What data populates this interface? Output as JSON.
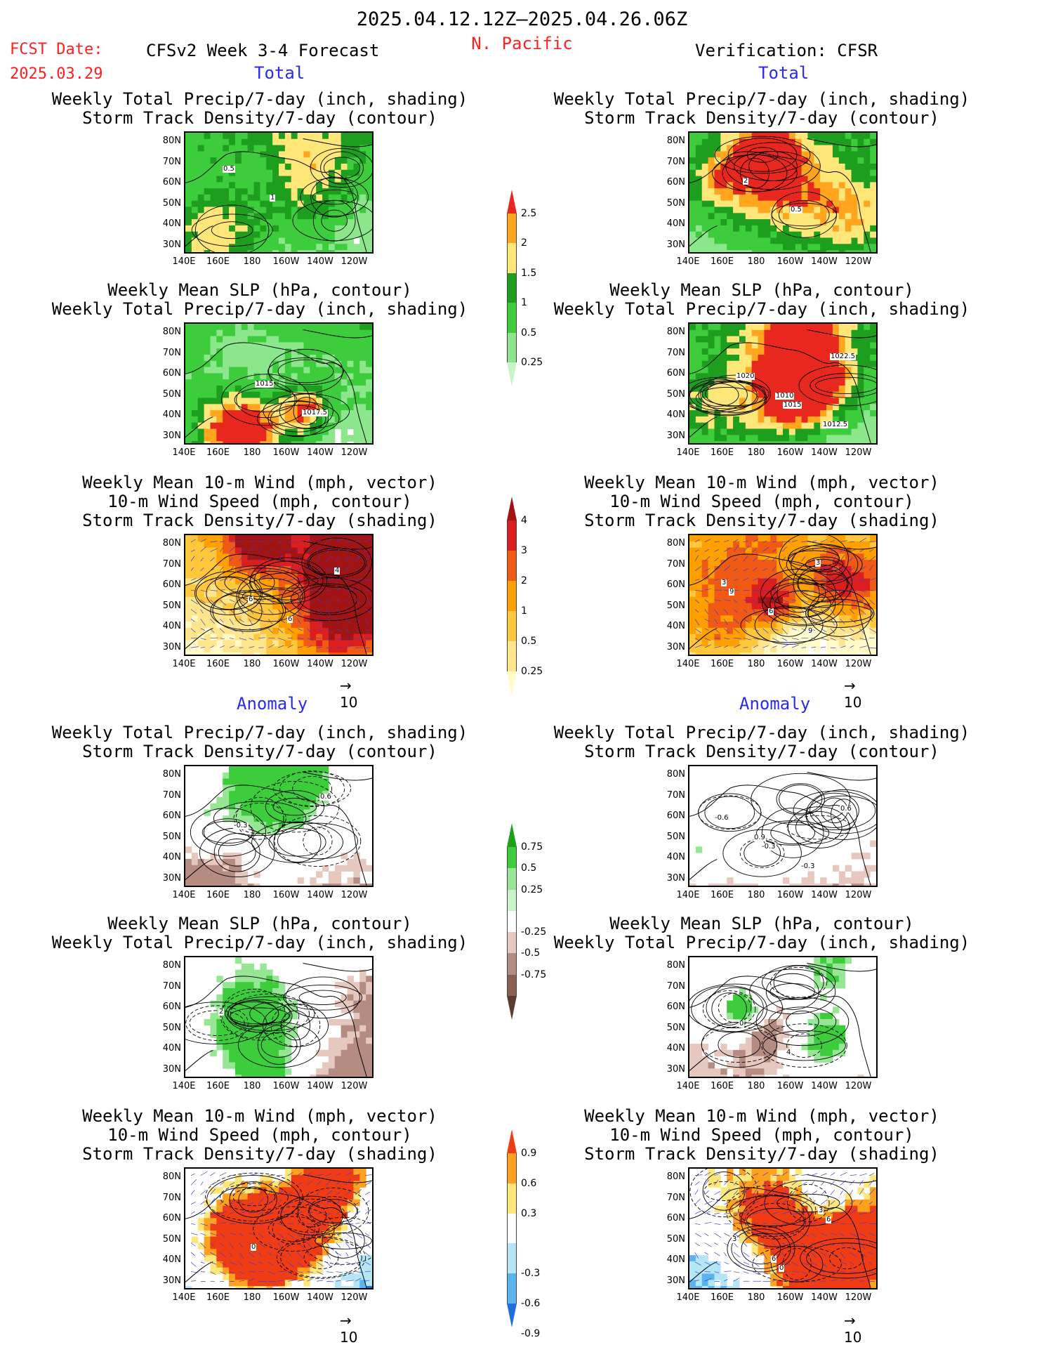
{
  "header": {
    "date_range": "2025.04.12.12Z–2025.04.26.06Z",
    "region": "N. Pacific",
    "fcst_label": "FCST Date:",
    "fcst_date": "2025.03.29",
    "forecast_title": "CFSv2 Week 3-4 Forecast",
    "verification_title": "Verification: CFSR"
  },
  "sections": {
    "total": "Total",
    "anomaly": "Anomaly"
  },
  "titles": {
    "precip_storm": [
      "Weekly Total Precip/7-day (inch, shading)",
      "Storm Track Density/7-day (contour)"
    ],
    "slp_precip": [
      "Weekly Mean SLP (hPa, contour)",
      "Weekly Total Precip/7-day (inch, shading)"
    ],
    "wind_storm": [
      "Weekly Mean 10-m Wind (mph, vector)",
      "10-m Wind Speed (mph, contour)",
      "Storm Track Density/7-day (shading)"
    ]
  },
  "axes": {
    "lat": [
      "80N",
      "70N",
      "60N",
      "50N",
      "40N",
      "30N"
    ],
    "lon": [
      "140E",
      "160E",
      "180",
      "160W",
      "140W",
      "120W"
    ]
  },
  "vector_ref": "10",
  "colorbars": {
    "precip_total": {
      "labels": [
        "2.5",
        "2",
        "1.5",
        "1",
        "0.5",
        "0.25"
      ],
      "colors": [
        "#e8281e",
        "#ffa51e",
        "#ffe678",
        "#1e9e1e",
        "#3ccc3c",
        "#8ce68c",
        "#c8f5c8"
      ]
    },
    "storm_total": {
      "labels": [
        "4",
        "3",
        "2",
        "1",
        "0.5",
        "0.25"
      ],
      "colors": [
        "#a01414",
        "#dc1e1e",
        "#f05a14",
        "#ffa000",
        "#ffc83c",
        "#ffe68c",
        "#fffac8"
      ]
    },
    "precip_anom": {
      "labels": [
        "0.75",
        "0.5",
        "0.25",
        "-0.25",
        "-0.5",
        "-0.75"
      ],
      "colors": [
        "#1ea01e",
        "#3ccc3c",
        "#96e696",
        "#c8f5c8",
        "#ffffff",
        "#e6c8be",
        "#b48c82",
        "#8c6050",
        "#5a3c30"
      ]
    },
    "storm_anom": {
      "labels": [
        "0.9",
        "0.6",
        "0.3",
        "-0.3",
        "-0.6",
        "-0.9"
      ],
      "colors": [
        "#f03c14",
        "#ffa01e",
        "#ffe678",
        "#ffffff",
        "#b4e6f5",
        "#5ab4f0",
        "#1e6edc"
      ]
    }
  },
  "contour_labels": {
    "fc_precip_total": [
      "0.5",
      "1"
    ],
    "vf_precip_total": [
      "2",
      "0.5"
    ],
    "fc_slp_total": [
      "1015",
      "1017.5"
    ],
    "vf_slp_total": [
      "1010",
      "1012.5",
      "1020",
      "1015",
      "1022.5"
    ],
    "fc_wind_total": [
      "6",
      "4",
      "6"
    ],
    "vf_wind_total": [
      "9",
      "3",
      "6",
      "3",
      "9"
    ],
    "fc_precip_anom": [
      "0.6",
      "-0.3"
    ],
    "vf_precip_anom": [
      "0.6",
      "0.9",
      "-0.3",
      "-0.6",
      "-0.3"
    ],
    "fc_slp_anom": [
      "2"
    ],
    "vf_slp_anom": [
      "0",
      "4"
    ],
    "fc_wind_anom": [
      "0"
    ],
    "vf_wind_anom": [
      "6",
      "3",
      "3",
      "0",
      "6"
    ]
  }
}
